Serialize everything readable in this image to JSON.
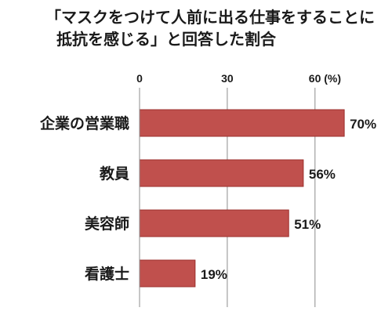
{
  "title_line1": "「マスクをつけて人前に出る仕事をすることに",
  "title_line2": "抵抗を感じる」と回答した割合",
  "chart_data": {
    "type": "bar",
    "orientation": "horizontal",
    "title": "「マスクをつけて人前に出る仕事をすることに抵抗を感じる」と回答した割合",
    "categories": [
      "企業の営業職",
      "教員",
      "美容師",
      "看護士"
    ],
    "values": [
      70,
      56,
      51,
      19
    ],
    "value_labels": [
      "70%",
      "56%",
      "51%",
      "19%"
    ],
    "xticks": [
      "0",
      "30",
      "60 (%)"
    ],
    "xtick_values": [
      0,
      30,
      60
    ],
    "xlim": [
      0,
      72
    ],
    "grid": true,
    "bar_color": "#c0504d",
    "bar_edge_color": "#9b2f2c"
  }
}
